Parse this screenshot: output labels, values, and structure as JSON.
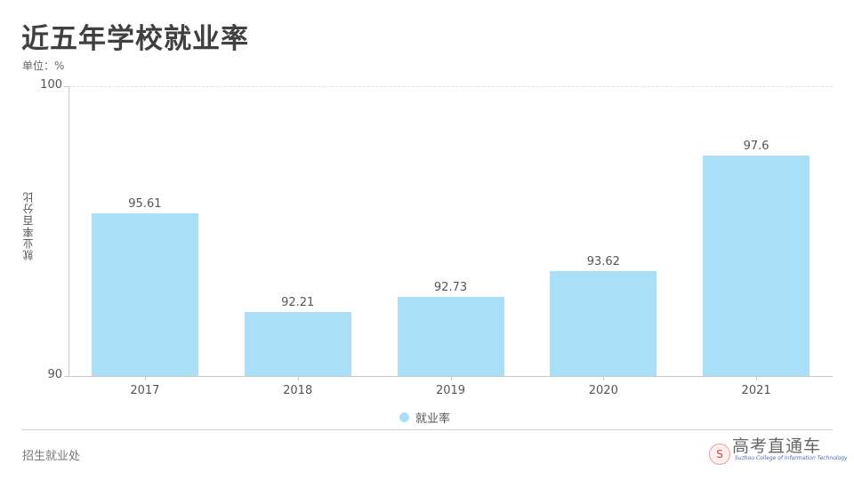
{
  "title": "近五年学校就业率",
  "unit_label": "单位：%",
  "footer": "招生就业处",
  "watermark": "高考直通车",
  "logo": {
    "icon": "college-emblem",
    "glyph": "S",
    "subtitle": "Suzhou College of Information Technology"
  },
  "colors": {
    "bar": "#aadff8",
    "axis": "#c8c8c8",
    "title": "#404040"
  },
  "chart_data": {
    "type": "bar",
    "title": "近五年学校就业率",
    "subtitle": "单位：%",
    "categories": [
      "2017",
      "2018",
      "2019",
      "2020",
      "2021"
    ],
    "series": [
      {
        "name": "就业率",
        "values": [
          95.61,
          92.21,
          92.73,
          93.62,
          97.6
        ],
        "color": "#aadff8"
      }
    ],
    "value_labels": [
      "95.61",
      "92.21",
      "92.73",
      "93.62",
      "97.6"
    ],
    "xlabel": "",
    "ylabel": "就业率百分比",
    "ylim": [
      90,
      100
    ],
    "yticks": [
      "100",
      "90"
    ],
    "grid": "dashed line at top only",
    "legend": {
      "position": "bottom",
      "entries": [
        "就业率"
      ]
    }
  }
}
